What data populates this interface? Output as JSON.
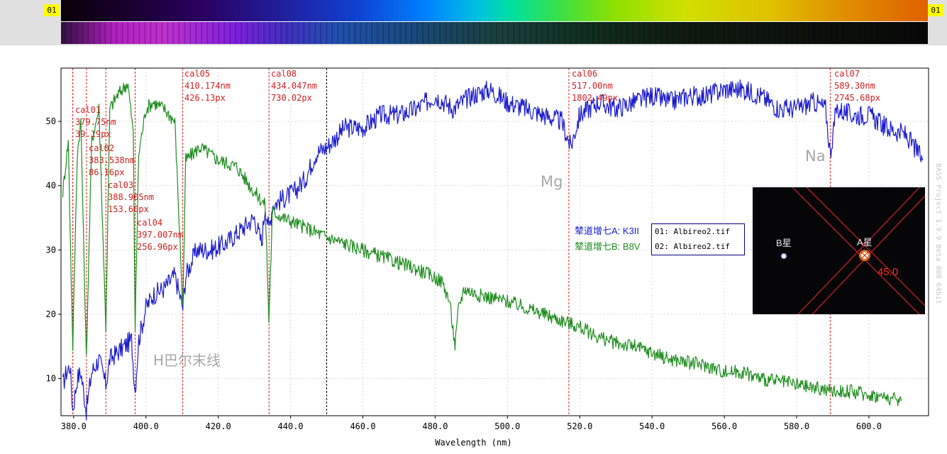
{
  "spectrum_strip": {
    "marker_left": "01",
    "marker_right": "01"
  },
  "side_text": "BASS Project 1.9.9 Beta 08B 64bit",
  "inset_image": {
    "label_b": "B星",
    "label_a": "A星",
    "angle": "45.0"
  },
  "legend": {
    "entries": [
      {
        "name": "辇道增七A: K3II",
        "file": "01: Albireo2.tif",
        "color": "#1a1acc"
      },
      {
        "name": "辇道增七B: B8V",
        "file": "02: Albireo2.tif",
        "color": "#1e8c1e"
      }
    ]
  },
  "chart_data": {
    "type": "line",
    "xlabel": "Wavelength (nm)",
    "ylabel": "",
    "xlim": [
      376.5,
      616.5
    ],
    "ylim": [
      4.2,
      58.3
    ],
    "x_ticks": [
      "380.0",
      "400.0",
      "420.0",
      "440.0",
      "460.0",
      "480.0",
      "500.0",
      "520.0",
      "540.0",
      "560.0",
      "580.0",
      "600.0"
    ],
    "y_ticks": [
      "10",
      "20",
      "30",
      "40",
      "50"
    ],
    "grid": true,
    "series": [
      {
        "name": "辇道增七A: K3II",
        "color": "#1a1acc",
        "points": [
          [
            377,
            9
          ],
          [
            378,
            11
          ],
          [
            379,
            12
          ],
          [
            379.75,
            5
          ],
          [
            381,
            10
          ],
          [
            382,
            11
          ],
          [
            383.5,
            5
          ],
          [
            385,
            11
          ],
          [
            387,
            13
          ],
          [
            388.9,
            9
          ],
          [
            390,
            13
          ],
          [
            392,
            14
          ],
          [
            394,
            15
          ],
          [
            396,
            16
          ],
          [
            397,
            8
          ],
          [
            398,
            16
          ],
          [
            400,
            21
          ],
          [
            402,
            23
          ],
          [
            405,
            24
          ],
          [
            408,
            26
          ],
          [
            410.2,
            21
          ],
          [
            411,
            26
          ],
          [
            414,
            30
          ],
          [
            418,
            30
          ],
          [
            422,
            31
          ],
          [
            426,
            33
          ],
          [
            430,
            35
          ],
          [
            432,
            31
          ],
          [
            433,
            37
          ],
          [
            434,
            33
          ],
          [
            435,
            37
          ],
          [
            438,
            38
          ],
          [
            441,
            39
          ],
          [
            444,
            41
          ],
          [
            447,
            45
          ],
          [
            450,
            46
          ],
          [
            455,
            49
          ],
          [
            460,
            49
          ],
          [
            465,
            51
          ],
          [
            470,
            51
          ],
          [
            475,
            52
          ],
          [
            480,
            54
          ],
          [
            485,
            52
          ],
          [
            490,
            54
          ],
          [
            495,
            55
          ],
          [
            500,
            53
          ],
          [
            505,
            52
          ],
          [
            510,
            51
          ],
          [
            515,
            50
          ],
          [
            517.5,
            46
          ],
          [
            520,
            51
          ],
          [
            525,
            53
          ],
          [
            530,
            52
          ],
          [
            535,
            53
          ],
          [
            540,
            54
          ],
          [
            545,
            53
          ],
          [
            550,
            54
          ],
          [
            555,
            54
          ],
          [
            560,
            55
          ],
          [
            565,
            55
          ],
          [
            570,
            54
          ],
          [
            575,
            52
          ],
          [
            580,
            52
          ],
          [
            585,
            53
          ],
          [
            588,
            52
          ],
          [
            589.3,
            45
          ],
          [
            591,
            52
          ],
          [
            595,
            51
          ],
          [
            600,
            51
          ],
          [
            605,
            49
          ],
          [
            610,
            48
          ],
          [
            615,
            44
          ]
        ]
      },
      {
        "name": "辇道增七B: B8V",
        "color": "#1e8c1e",
        "points": [
          [
            377,
            39
          ],
          [
            378.5,
            47
          ],
          [
            379.75,
            15
          ],
          [
            381,
            45
          ],
          [
            382,
            50
          ],
          [
            383.5,
            13
          ],
          [
            385,
            47
          ],
          [
            387,
            52
          ],
          [
            388.9,
            18
          ],
          [
            390,
            52
          ],
          [
            392,
            54
          ],
          [
            395,
            56
          ],
          [
            396.5,
            48
          ],
          [
            397,
            18
          ],
          [
            398,
            45
          ],
          [
            400,
            52
          ],
          [
            402,
            53
          ],
          [
            405,
            52
          ],
          [
            408,
            50
          ],
          [
            410.2,
            21
          ],
          [
            411,
            44
          ],
          [
            415,
            46
          ],
          [
            420,
            44
          ],
          [
            425,
            43
          ],
          [
            430,
            39
          ],
          [
            433,
            37
          ],
          [
            434,
            19
          ],
          [
            435,
            36
          ],
          [
            438,
            35
          ],
          [
            442,
            34
          ],
          [
            446,
            33
          ],
          [
            450,
            32
          ],
          [
            455,
            31
          ],
          [
            460,
            30
          ],
          [
            465,
            29
          ],
          [
            470,
            28
          ],
          [
            475,
            27
          ],
          [
            479,
            26
          ],
          [
            482,
            25
          ],
          [
            484,
            22
          ],
          [
            485.5,
            15
          ],
          [
            486.5,
            21
          ],
          [
            488,
            24
          ],
          [
            492,
            23
          ],
          [
            500,
            22
          ],
          [
            505,
            21
          ],
          [
            510,
            20
          ],
          [
            515,
            19
          ],
          [
            520,
            18
          ],
          [
            525,
            16.5
          ],
          [
            530,
            15.5
          ],
          [
            535,
            15
          ],
          [
            540,
            14
          ],
          [
            545,
            13
          ],
          [
            550,
            12.5
          ],
          [
            555,
            12
          ],
          [
            560,
            11
          ],
          [
            565,
            11
          ],
          [
            570,
            10
          ],
          [
            575,
            9.5
          ],
          [
            580,
            9
          ],
          [
            585,
            8.5
          ],
          [
            590,
            8
          ],
          [
            595,
            8
          ],
          [
            600,
            7.5
          ],
          [
            605,
            7
          ],
          [
            609,
            6.5
          ]
        ]
      }
    ],
    "calibration_lines": [
      {
        "label": "cal01",
        "nm": "379.75nm",
        "px": "39.19px",
        "x": 379.75
      },
      {
        "label": "cal02",
        "nm": "383.538nm",
        "px": "86.16px",
        "x": 383.538
      },
      {
        "label": "cal03",
        "nm": "388.905nm",
        "px": "153.60px",
        "x": 388.905
      },
      {
        "label": "cal04",
        "nm": "397.007nm",
        "px": "256.96px",
        "x": 397.007
      },
      {
        "label": "cal05",
        "nm": "410.174nm",
        "px": "426.13px",
        "x": 410.174
      },
      {
        "label": "cal08",
        "nm": "434.047nm",
        "px": "730.02px",
        "x": 434.047
      },
      {
        "label": "cal06",
        "nm": "517.00nm",
        "px": "1802.49px",
        "x": 517.0
      },
      {
        "label": "cal07",
        "nm": "589.30nm",
        "px": "2745.68px",
        "x": 589.3
      }
    ],
    "reference_line_x": 450.0,
    "annotations": [
      "H巴尔末线",
      "Mg",
      "Na"
    ]
  }
}
